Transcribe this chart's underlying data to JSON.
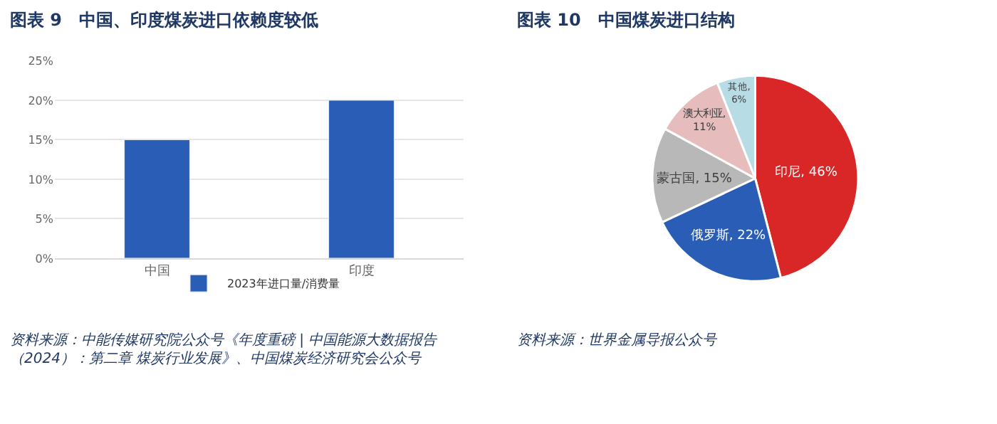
{
  "chart_data": [
    {
      "type": "bar",
      "title": "图表 9　中国、印度煤炭进口依赖度较低",
      "categories": [
        "中国",
        "印度"
      ],
      "series": [
        {
          "name": "2023年进口量/消费量",
          "color": "#2a5db5",
          "values": [
            15,
            20
          ]
        }
      ],
      "ylim": [
        0,
        25
      ],
      "yticks": [
        {
          "value": 0,
          "label": "0%"
        },
        {
          "value": 5,
          "label": "5%"
        },
        {
          "value": 10,
          "label": "10%"
        },
        {
          "value": 15,
          "label": "15%"
        },
        {
          "value": 20,
          "label": "20%"
        },
        {
          "value": 25,
          "label": "25%"
        }
      ],
      "grid": "y",
      "legend": "bottom",
      "annotations": [
        "资料来源：中能传媒研究院公众号《年度重磅 | 中国能源大数据报告（2024）：第二章 煤炭行业发展》、中国煤炭经济研究会公众号"
      ]
    },
    {
      "type": "pie",
      "title": "图表 10　中国煤炭进口结构",
      "categories": [
        "印尼",
        "俄罗斯",
        "蒙古国",
        "澳大利亚",
        "其他"
      ],
      "values": [
        46,
        22,
        15,
        11,
        6
      ],
      "colors": [
        "#d92626",
        "#2a5db5",
        "#b8b8b8",
        "#e6bcbc",
        "#b8dce6"
      ],
      "value_labels": [
        ", 46%",
        ", 22%",
        ", 15%",
        ", 11%",
        ", 6%"
      ],
      "annotations": [
        "资料来源：世界金属导报公众号"
      ]
    }
  ]
}
